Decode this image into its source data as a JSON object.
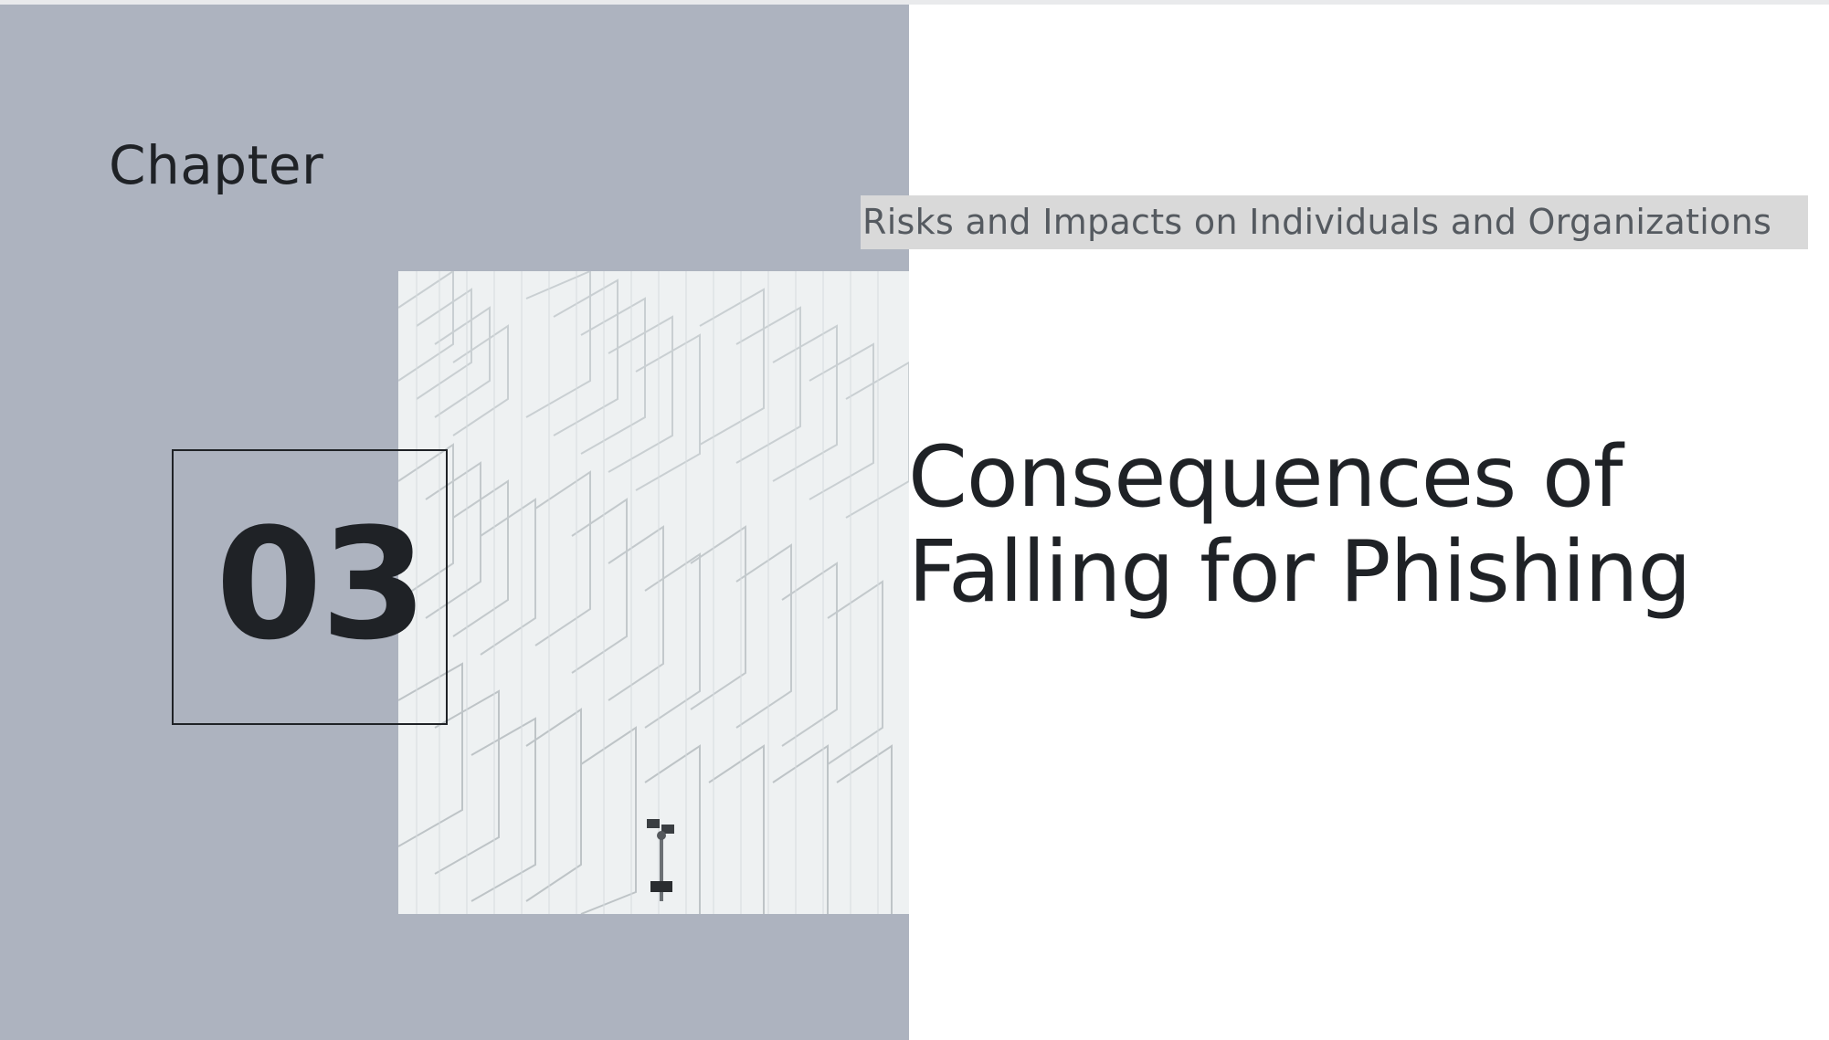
{
  "slide": {
    "chapter_label": "Chapter",
    "chapter_number": "03",
    "subtitle": "Risks and Impacts on Individuals and Organizations",
    "title": "Consequences of Falling for Phishing"
  },
  "colors": {
    "left_panel": "#adb3bf",
    "text_dark": "#1f2226",
    "subtitle_bg": "#d9d9d9",
    "subtitle_text": "#555a60",
    "background": "#ffffff"
  },
  "images": {
    "photo": "white-architectural-fins-photo"
  }
}
